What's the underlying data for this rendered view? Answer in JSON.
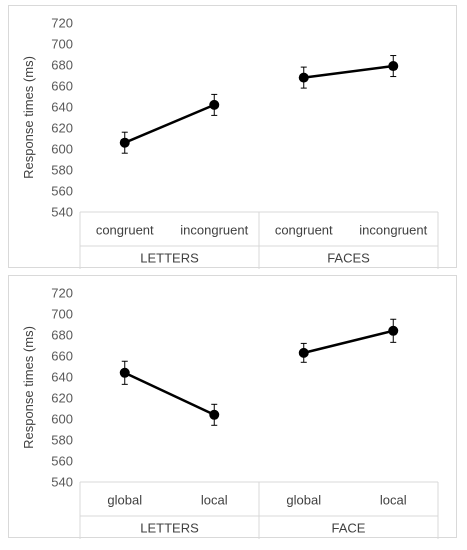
{
  "chart_data": [
    {
      "type": "line",
      "ylabel": "Response times (ms)",
      "ylim": [
        540,
        720
      ],
      "yticks": [
        "540",
        "560",
        "580",
        "600",
        "620",
        "640",
        "660",
        "680",
        "700",
        "720"
      ],
      "groups": [
        {
          "label": "LETTERS",
          "categories": [
            "congruent",
            "incongruent"
          ],
          "values": [
            606,
            642
          ],
          "errors": [
            10,
            10
          ]
        },
        {
          "label": "FACES",
          "categories": [
            "congruent",
            "incongruent"
          ],
          "values": [
            668,
            679
          ],
          "errors": [
            10,
            10
          ]
        }
      ],
      "grid": false,
      "colors": {
        "line": "#000000",
        "marker": "#000000",
        "axis": "#d9d9d9"
      }
    },
    {
      "type": "line",
      "ylabel": "Response times (ms)",
      "ylim": [
        540,
        720
      ],
      "yticks": [
        "540",
        "560",
        "580",
        "600",
        "620",
        "640",
        "660",
        "680",
        "700",
        "720"
      ],
      "groups": [
        {
          "label": "LETTERS",
          "categories": [
            "global",
            "local"
          ],
          "values": [
            644,
            604
          ],
          "errors": [
            11,
            10
          ]
        },
        {
          "label": "FACE",
          "categories": [
            "global",
            "local"
          ],
          "values": [
            663,
            684
          ],
          "errors": [
            9,
            11
          ]
        }
      ],
      "grid": false,
      "colors": {
        "line": "#000000",
        "marker": "#000000",
        "axis": "#d9d9d9"
      }
    }
  ]
}
